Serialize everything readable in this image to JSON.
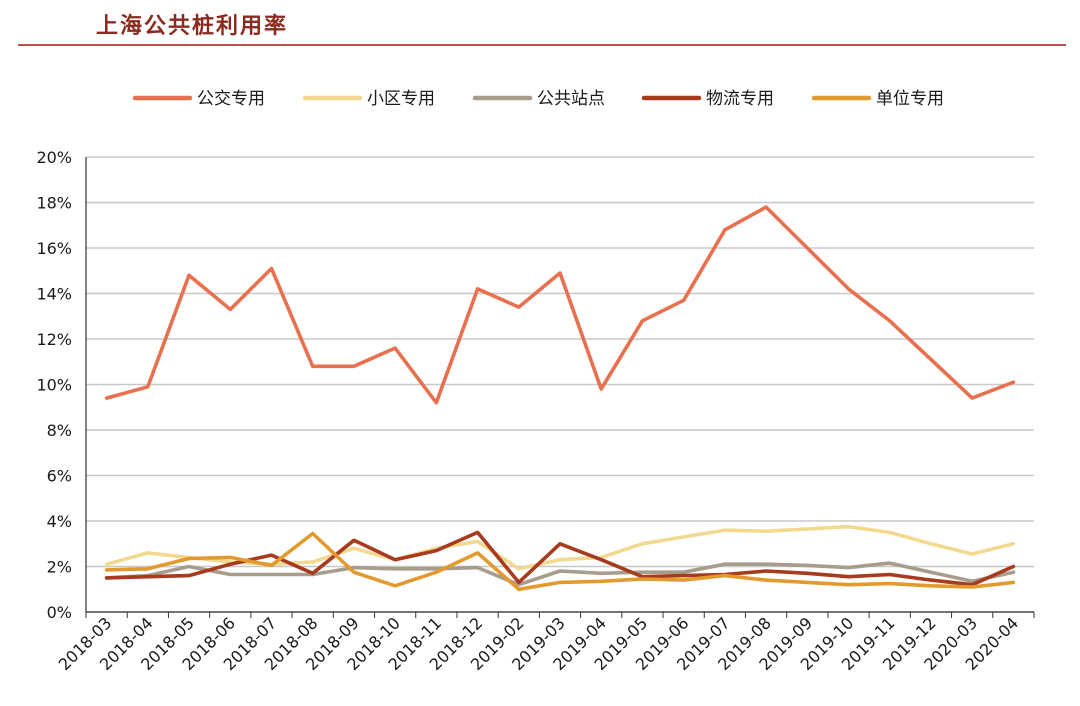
{
  "header": {
    "title": "上海公共桩利用率"
  },
  "chart_data": {
    "type": "line",
    "title": "上海公共桩利用率",
    "xlabel": "",
    "ylabel": "",
    "ylim": [
      0,
      20
    ],
    "y_ticks": [
      "0%",
      "2%",
      "4%",
      "6%",
      "8%",
      "10%",
      "12%",
      "14%",
      "16%",
      "18%",
      "20%"
    ],
    "categories": [
      "2018-03",
      "2018-04",
      "2018-05",
      "2018-06",
      "2018-07",
      "2018-08",
      "2018-09",
      "2018-10",
      "2018-11",
      "2018-12",
      "2019-02",
      "2019-03",
      "2019-04",
      "2019-05",
      "2019-06",
      "2019-07",
      "2019-08",
      "2019-09",
      "2019-10",
      "2019-11",
      "2019-12",
      "2020-03",
      "2020-04"
    ],
    "grid": true,
    "legend_position": "top",
    "series": [
      {
        "name": "公交专用",
        "color": "#e8704f",
        "values": [
          9.4,
          9.9,
          14.8,
          13.3,
          15.1,
          10.8,
          10.8,
          11.6,
          9.2,
          14.2,
          13.4,
          14.9,
          9.8,
          12.8,
          13.7,
          16.8,
          17.8,
          16.0,
          14.2,
          12.8,
          11.1,
          9.4,
          10.1
        ]
      },
      {
        "name": "小区专用",
        "color": "#f2d98f",
        "values": [
          2.1,
          2.6,
          2.4,
          2.2,
          2.1,
          2.2,
          2.8,
          2.3,
          2.8,
          3.1,
          1.9,
          2.3,
          2.4,
          3.0,
          3.3,
          3.6,
          3.55,
          3.65,
          3.75,
          3.5,
          3.0,
          2.55,
          3.0
        ]
      },
      {
        "name": "公共站点",
        "color": "#a89c8c",
        "values": [
          1.5,
          1.6,
          2.0,
          1.65,
          1.65,
          1.65,
          1.95,
          1.9,
          1.9,
          1.95,
          1.2,
          1.8,
          1.7,
          1.75,
          1.75,
          2.1,
          2.1,
          2.05,
          1.95,
          2.15,
          1.75,
          1.35,
          1.75
        ]
      },
      {
        "name": "物流专用",
        "color": "#a83a1e",
        "values": [
          1.5,
          1.55,
          1.6,
          2.1,
          2.5,
          1.7,
          3.15,
          2.3,
          2.7,
          3.5,
          1.3,
          3.0,
          2.3,
          1.55,
          1.6,
          1.65,
          1.8,
          1.7,
          1.55,
          1.65,
          1.4,
          1.2,
          2.0
        ]
      },
      {
        "name": "单位专用",
        "color": "#e29a2e",
        "values": [
          1.85,
          1.9,
          2.35,
          2.4,
          2.05,
          3.45,
          1.75,
          1.15,
          1.75,
          2.6,
          1.0,
          1.3,
          1.35,
          1.45,
          1.4,
          1.6,
          1.4,
          1.3,
          1.2,
          1.25,
          1.15,
          1.1,
          1.3
        ]
      }
    ]
  }
}
